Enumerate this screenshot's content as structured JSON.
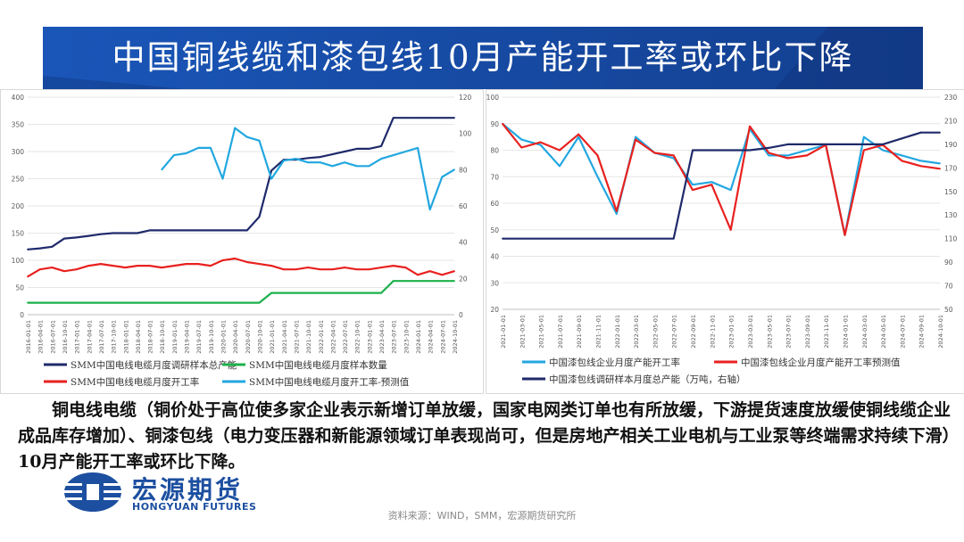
{
  "title": "中国铜线缆和漆包线10月产能开工率或环比下降",
  "body": "铜电线电缆（铜价处于高位使多家企业表示新增订单放缓，国家电网类订单也有所放缓，下游提货速度放缓使铜线缆企业成品库存增加）、铜漆包线（电力变压器和新能源领域订单表现尚可，但是房地产相关工业电机与工业泵等终端需求持续下滑）10月产能开工率或环比下降。",
  "logo": {
    "cn": "宏源期货",
    "en": "HONGYUAN FUTURES"
  },
  "source": "资料来源：WIND，SMM，宏源期货研究所",
  "colors": {
    "banner": "#1f4ea3",
    "navy": "#1f2a6b",
    "green": "#1cb14b",
    "red": "#e8211f",
    "lightblue": "#22a7e0"
  },
  "chart_data": [
    {
      "type": "line",
      "x": [
        "2016-01-01",
        "2016-04-01",
        "2016-07-01",
        "2016-10-01",
        "2017-01-01",
        "2017-04-01",
        "2017-07-01",
        "2017-10-01",
        "2018-01-01",
        "2018-04-01",
        "2018-07-01",
        "2018-10-01",
        "2019-01-01",
        "2019-04-01",
        "2019-07-01",
        "2019-10-01",
        "2020-01-01",
        "2020-04-01",
        "2020-07-01",
        "2020-10-01",
        "2021-01-01",
        "2021-04-01",
        "2021-07-01",
        "2021-10-01",
        "2022-01-01",
        "2022-04-01",
        "2022-07-01",
        "2022-10-01",
        "2023-01-01",
        "2023-04-01",
        "2023-07-01",
        "2023-10-01",
        "2024-01-01",
        "2024-04-01",
        "2024-07-01",
        "2024-10-01"
      ],
      "ylim_left": [
        0,
        400
      ],
      "yticks_left": [
        0,
        50,
        100,
        150,
        200,
        250,
        300,
        350,
        400
      ],
      "ylim_right": [
        0,
        120
      ],
      "yticks_right": [
        0,
        20,
        40,
        60,
        80,
        100,
        120
      ],
      "series": [
        {
          "name": "SMM中国电线电缆月度调研样本总产能",
          "axis": "left",
          "color": "#1f2a6b",
          "values": [
            120,
            122,
            125,
            140,
            142,
            145,
            148,
            150,
            150,
            150,
            155,
            155,
            155,
            155,
            155,
            155,
            155,
            155,
            155,
            180,
            265,
            285,
            285,
            288,
            290,
            295,
            300,
            305,
            305,
            310,
            362,
            362,
            362,
            362,
            362,
            362
          ]
        },
        {
          "name": "SMM中国电线电缆月度样本数量",
          "axis": "left",
          "color": "#1cb14b",
          "values": [
            22,
            22,
            22,
            22,
            22,
            22,
            22,
            22,
            22,
            22,
            22,
            22,
            22,
            22,
            22,
            22,
            22,
            22,
            22,
            22,
            40,
            40,
            40,
            40,
            40,
            40,
            40,
            40,
            40,
            40,
            62,
            62,
            62,
            62,
            62,
            62
          ]
        },
        {
          "name": "SMM中国电线电缆月度开工率",
          "axis": "right",
          "color": "#e8211f",
          "values": [
            21,
            25,
            26,
            24,
            25,
            27,
            28,
            27,
            26,
            27,
            27,
            26,
            27,
            28,
            28,
            27,
            30,
            31,
            29,
            28,
            27,
            25,
            25,
            26,
            25,
            25,
            26,
            25,
            25,
            26,
            27,
            26,
            22,
            24,
            22,
            24
          ]
        },
        {
          "name": "SMM中国电线电缆月度开工率-预测值",
          "axis": "right",
          "color": "#22a7e0",
          "values": [
            null,
            null,
            null,
            null,
            null,
            null,
            null,
            null,
            null,
            null,
            null,
            80,
            88,
            89,
            92,
            92,
            75,
            103,
            98,
            96,
            75,
            85,
            86,
            84,
            84,
            82,
            84,
            82,
            82,
            86,
            88,
            90,
            92,
            58,
            76,
            80
          ]
        }
      ],
      "legend_position": "bottom"
    },
    {
      "type": "line",
      "x": [
        "2021-01-01",
        "2021-03-01",
        "2021-05-01",
        "2021-07-01",
        "2021-09-01",
        "2021-11-01",
        "2022-01-01",
        "2022-03-01",
        "2022-05-01",
        "2022-07-01",
        "2022-09-01",
        "2022-11-01",
        "2023-01-01",
        "2023-03-01",
        "2023-05-01",
        "2023-07-01",
        "2023-09-01",
        "2023-11-01",
        "2024-01-01",
        "2024-03-01",
        "2024-05-01",
        "2024-07-01",
        "2024-09-01",
        "2024-10-01"
      ],
      "ylim_left": [
        20,
        100
      ],
      "yticks_left": [
        20,
        30,
        40,
        50,
        60,
        70,
        80,
        90,
        100
      ],
      "ylim_right": [
        50,
        230
      ],
      "yticks_right": [
        50,
        70,
        90,
        110,
        130,
        150,
        170,
        190,
        210,
        230
      ],
      "series": [
        {
          "name": "中国漆包线企业月度产能开工率",
          "axis": "left",
          "color": "#22a7e0",
          "values": [
            90,
            84,
            82,
            74,
            85,
            70,
            56,
            85,
            79,
            77,
            67,
            68,
            65,
            88,
            78,
            78,
            80,
            82,
            48,
            85,
            80,
            78,
            76,
            75
          ]
        },
        {
          "name": "中国漆包线企业月度产能开工率预测值",
          "axis": "left",
          "color": "#e8211f",
          "values": [
            90,
            81,
            83,
            80,
            86,
            78,
            57,
            84,
            79,
            78,
            65,
            67,
            50,
            89,
            79,
            77,
            78,
            82,
            48,
            80,
            82,
            76,
            74,
            73
          ]
        },
        {
          "name": "中国漆包线调研样本月度总产能（万吨，右轴）",
          "axis": "right",
          "color": "#1f2a6b",
          "values": [
            110,
            110,
            110,
            110,
            110,
            110,
            110,
            110,
            110,
            110,
            185,
            185,
            185,
            185,
            187,
            190,
            190,
            190,
            190,
            190,
            190,
            195,
            200,
            200
          ]
        }
      ],
      "legend_position": "bottom"
    }
  ]
}
